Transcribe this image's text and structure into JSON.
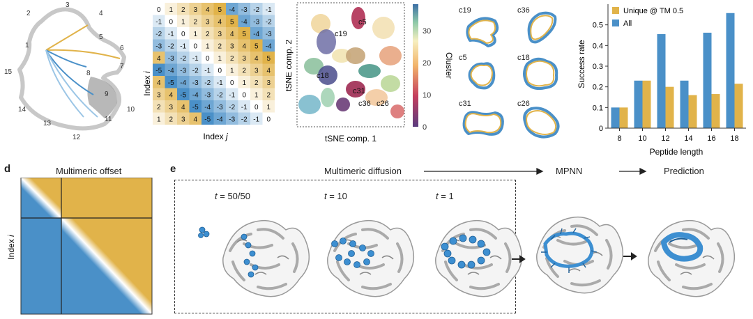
{
  "panel_a": {
    "node_numbers": [
      "1",
      "2",
      "3",
      "4",
      "5",
      "6",
      "7",
      "8",
      "9",
      "10",
      "11",
      "12",
      "13",
      "14",
      "15"
    ]
  },
  "matrix_top": {
    "rows": [
      [
        "0",
        "1",
        "2",
        "3",
        "4",
        "5",
        "-4",
        "-3",
        "-2",
        "-1"
      ],
      [
        "-1",
        "0",
        "1",
        "2",
        "3",
        "4",
        "5",
        "-4",
        "-3",
        "-2"
      ],
      [
        "-2",
        "-1",
        "0",
        "1",
        "2",
        "3",
        "4",
        "5",
        "-4",
        "-3"
      ],
      [
        "-3",
        "-2",
        "-1",
        "0",
        "1",
        "2",
        "3",
        "4",
        "5",
        "-4"
      ],
      [
        "4",
        "-3",
        "-2",
        "-1",
        "0",
        "1",
        "2",
        "3",
        "4",
        "5"
      ],
      [
        "-5",
        "-4",
        "-3",
        "-2",
        "-1",
        "0",
        "1",
        "2",
        "3",
        "4"
      ],
      [
        "4",
        "-5",
        "-4",
        "-3",
        "-2",
        "-1",
        "0",
        "1",
        "2",
        "3"
      ],
      [
        "3",
        "4",
        "-5",
        "-4",
        "-3",
        "-2",
        "-1",
        "0",
        "1",
        "2"
      ],
      [
        "2",
        "3",
        "4",
        "-5",
        "-4",
        "-3",
        "-2",
        "-1",
        "0",
        "1"
      ],
      [
        "1",
        "2",
        "3",
        "4",
        "-5",
        "-4",
        "-3",
        "-2",
        "-1",
        "0"
      ]
    ],
    "ylabel_prefix": "Index ",
    "ylabel_var": "i",
    "xlabel_prefix": "Index ",
    "xlabel_var": "j"
  },
  "tsne": {
    "xlabel": "tSNE comp. 1",
    "ylabel": "tSNE comp. 2",
    "colorbar_label": "Cluster",
    "colorbar_ticks": [
      "30",
      "20",
      "10",
      "0"
    ],
    "cluster_labels": [
      "c5",
      "c19",
      "c18",
      "c31",
      "c36",
      "c26"
    ]
  },
  "structures": {
    "labels": [
      "c19",
      "c36",
      "c5",
      "c18",
      "c31",
      "c26"
    ]
  },
  "chart_data": {
    "type": "bar",
    "categories": [
      "8",
      "10",
      "12",
      "14",
      "16",
      "18"
    ],
    "series": [
      {
        "name": "Unique @ TM 0.5",
        "color": "#E1B34A",
        "values": [
          0.1,
          0.23,
          0.2,
          0.16,
          0.165,
          0.215
        ]
      },
      {
        "name": "All",
        "color": "#4A90C8",
        "values": [
          0.1,
          0.23,
          0.455,
          0.23,
          0.462,
          0.557
        ]
      }
    ],
    "xlabel": "Peptide length",
    "ylabel": "Success rate",
    "ylim": [
      0,
      0.6
    ],
    "yticks": [
      "0",
      "0.1",
      "0.2",
      "0.3",
      "0.4",
      "0.5"
    ],
    "legend_position": "top-left"
  },
  "panel_d": {
    "letter": "d",
    "title": "Multimeric offset",
    "ylabel_prefix": "Index ",
    "ylabel_var": "i"
  },
  "panel_e": {
    "letter": "e",
    "header_diffusion": "Multimeric diffusion",
    "header_mpnn": "MPNN",
    "header_prediction": "Prediction",
    "steps": [
      {
        "var": "t",
        "value": " = 50/50"
      },
      {
        "var": "t",
        "value": " = 10"
      },
      {
        "var": "t",
        "value": " = 1"
      }
    ],
    "ellipsis": "..."
  },
  "colors": {
    "blue": "#4A90C8",
    "gold": "#E1B34A"
  }
}
